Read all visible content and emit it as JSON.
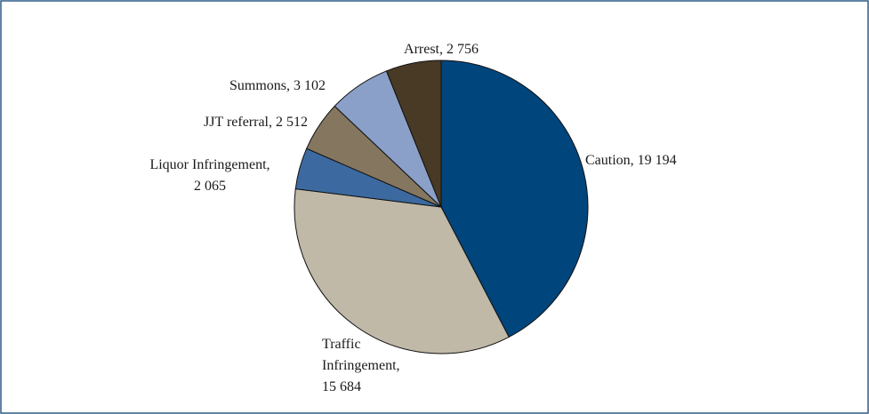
{
  "chart_data": {
    "type": "pie",
    "categories": [
      "Caution",
      "Traffic Infringement",
      "Liquor Infringement",
      "JJT referral",
      "Summons",
      "Arrest"
    ],
    "values": [
      19194,
      15684,
      2065,
      2512,
      3102,
      2756
    ],
    "labels": [
      [
        "Caution, 19 194"
      ],
      [
        "Traffic",
        "Infringement,",
        "15 684"
      ],
      [
        "Liquor Infringement,",
        "2 065"
      ],
      [
        "JJT referral, 2 512"
      ],
      [
        "Summons, 3 102"
      ],
      [
        "Arrest, 2 756"
      ]
    ],
    "colors": [
      "#00457c",
      "#c1b9a8",
      "#3c6aa0",
      "#857660",
      "#8aa0c8",
      "#483a24"
    ]
  }
}
